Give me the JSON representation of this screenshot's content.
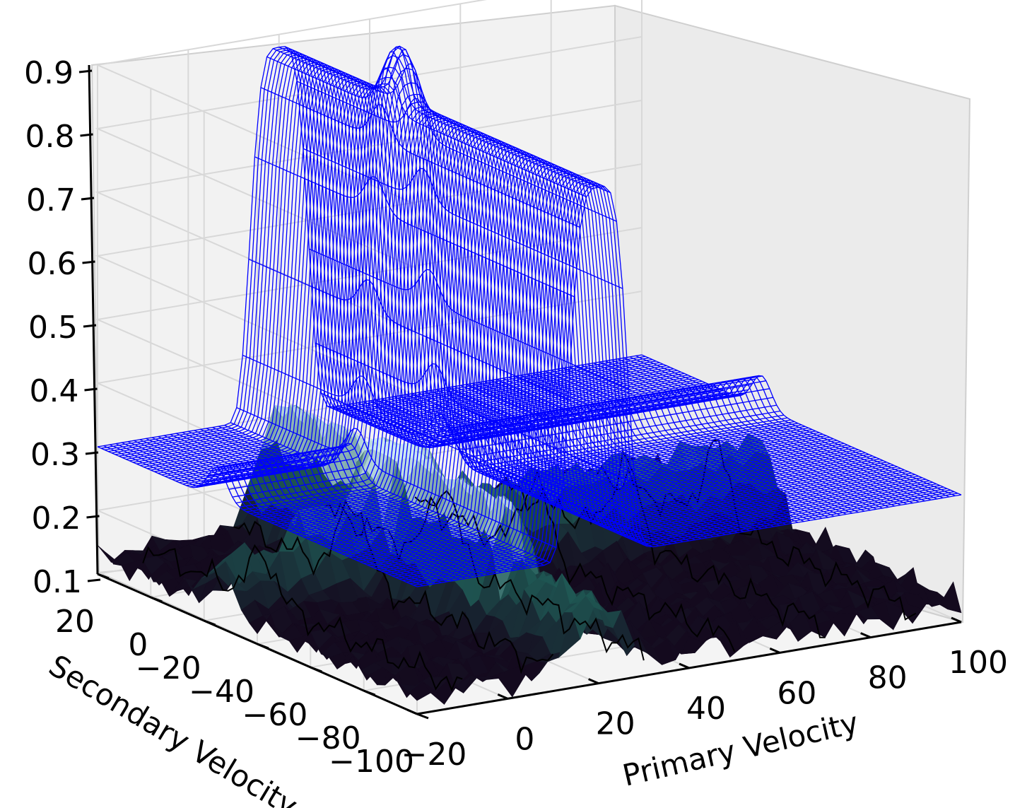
{
  "chart_data": {
    "type": "surface3d",
    "xlabel": "Primary Velocity",
    "ylabel": "Secondary Velocity",
    "zlabel": "",
    "x_ticks": [
      "−20",
      "0",
      "20",
      "40",
      "60",
      "80",
      "100"
    ],
    "y_ticks": [
      "−100",
      "−80",
      "−60",
      "−40",
      "−20",
      "0",
      "20"
    ],
    "z_ticks": [
      "0.1",
      "0.2",
      "0.3",
      "0.4",
      "0.5",
      "0.6",
      "0.7",
      "0.8",
      "0.9"
    ],
    "xlim": [
      -20,
      100
    ],
    "ylim": [
      -100,
      20
    ],
    "zlim": [
      0.1,
      0.9
    ],
    "grid": true,
    "colors": {
      "wireframe": "#0000ff",
      "surface_dark": "#140a1e",
      "surface_mid": "#1f5a55",
      "surface_light": "#cce8f0",
      "pane": "#f2f2f2",
      "grid": "#d8d8d8"
    },
    "series": [
      {
        "kind": "wireframe",
        "baseline_z": 0.3,
        "ridge_along_primary": {
          "center": 20,
          "peak_z": 0.88
        },
        "ridge_along_secondary": {
          "center": -25,
          "peak_z": 0.35
        }
      },
      {
        "kind": "surface",
        "baseline_z": 0.13,
        "peak_z": 0.33
      }
    ]
  }
}
